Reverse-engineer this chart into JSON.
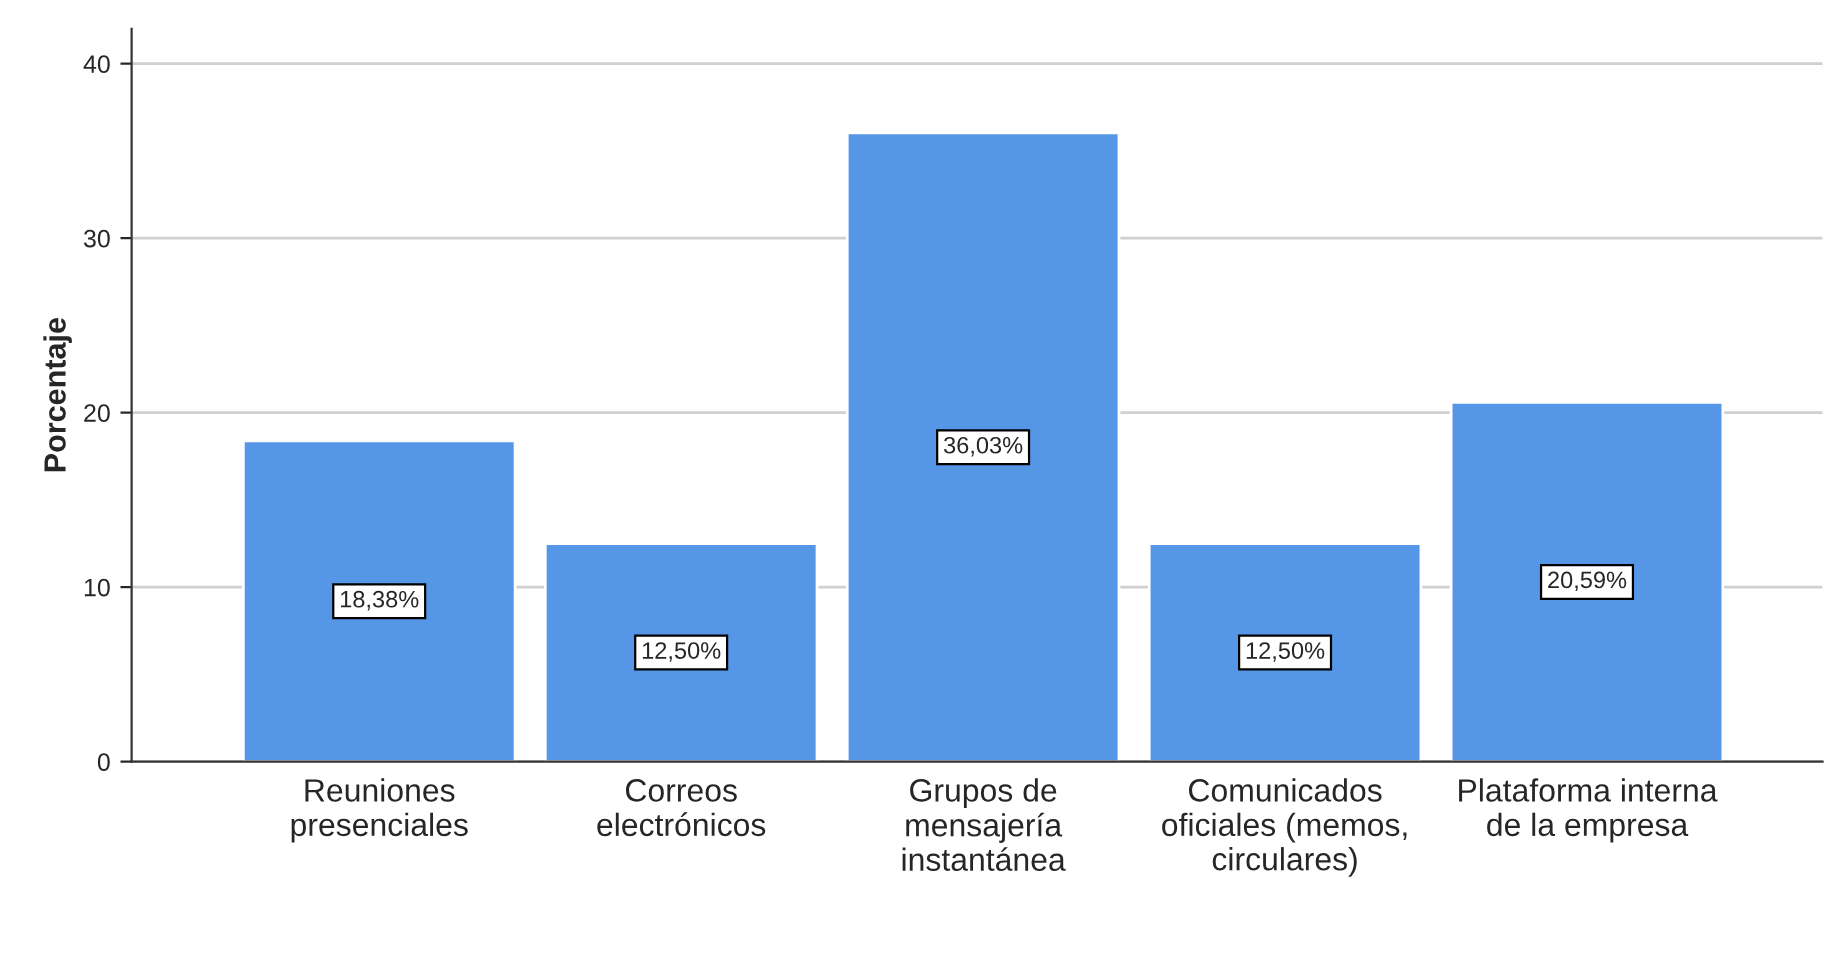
{
  "chart_data": {
    "type": "bar",
    "ylabel": "Porcentaje",
    "categories": [
      "Reuniones\npresenciales",
      "Correos\nelectrónicos",
      "Grupos de\nmensajería\ninstantánea",
      "Comunicados\noficiales (memos,\ncirculares)",
      "Plataforma interna\nde la empresa"
    ],
    "values": [
      18.38,
      12.5,
      36.03,
      12.5,
      20.59
    ],
    "value_labels": [
      "18,38%",
      "12,50%",
      "36,03%",
      "12,50%",
      "20,59%"
    ],
    "color": "#5596e6",
    "ylim": [
      0,
      42
    ],
    "yticks": [
      0,
      10,
      20,
      30,
      40
    ],
    "grid": "y",
    "legend": false
  }
}
